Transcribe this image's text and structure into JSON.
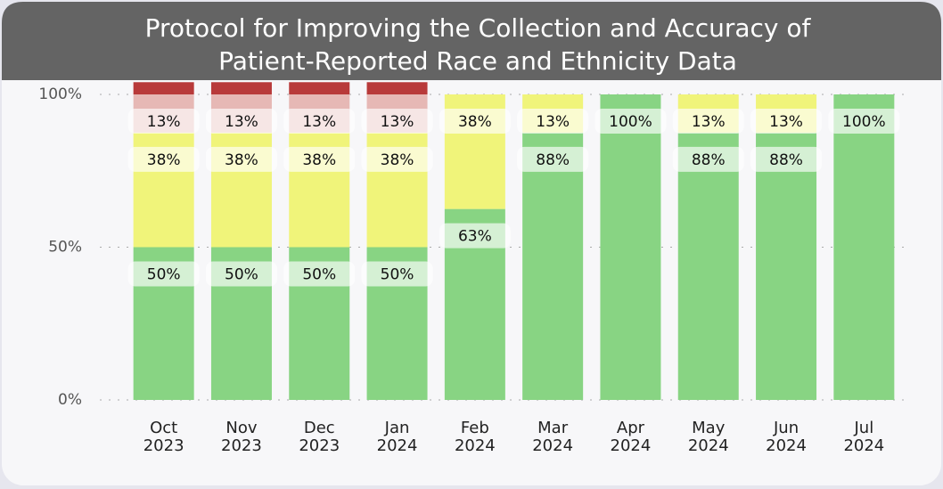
{
  "chart_data": {
    "type": "stacked_bar",
    "title": [
      "Protocol for Improving the Collection and Accuracy of",
      "Patient-Reported Race and Ethnicity Data"
    ],
    "categories": [
      [
        "Oct",
        "2023"
      ],
      [
        "Nov",
        "2023"
      ],
      [
        "Dec",
        "2023"
      ],
      [
        "Jan",
        "2024"
      ],
      [
        "Feb",
        "2024"
      ],
      [
        "Mar",
        "2024"
      ],
      [
        "Apr",
        "2024"
      ],
      [
        "May",
        "2024"
      ],
      [
        "Jun",
        "2024"
      ],
      [
        "Jul",
        "2024"
      ]
    ],
    "series": [
      {
        "color": "#88d483",
        "values": [
          50,
          50,
          50,
          50,
          62.5,
          87.5,
          100,
          87.5,
          87.5,
          100
        ],
        "value_labels": [
          "50%",
          "50%",
          "50%",
          "50%",
          "63%",
          "88%",
          "100%",
          "88%",
          "88%",
          "100%"
        ]
      },
      {
        "color": "#f0f47a",
        "values": [
          37.5,
          37.5,
          37.5,
          37.5,
          37.5,
          12.5,
          null,
          12.5,
          12.5,
          null
        ],
        "value_labels": [
          "38%",
          "38%",
          "38%",
          "38%",
          "38%",
          "13%",
          null,
          "13%",
          "13%",
          null
        ]
      },
      {
        "color": "#e6b8b5",
        "values": [
          12.5,
          12.5,
          12.5,
          12.5,
          null,
          null,
          null,
          null,
          null,
          null
        ],
        "value_labels": [
          "13%",
          "13%",
          "13%",
          "13%",
          null,
          null,
          null,
          null,
          null,
          null
        ]
      },
      {
        "color": "#b83a3a",
        "values": [
          4,
          4,
          4,
          4,
          null,
          null,
          null,
          null,
          null,
          null
        ]
      }
    ],
    "ylim": [
      0,
      100
    ],
    "yticks": [
      {
        "value": 0,
        "label": "0%"
      },
      {
        "value": 50,
        "label": "50%"
      },
      {
        "value": 100,
        "label": "100%"
      }
    ],
    "grid": true
  }
}
